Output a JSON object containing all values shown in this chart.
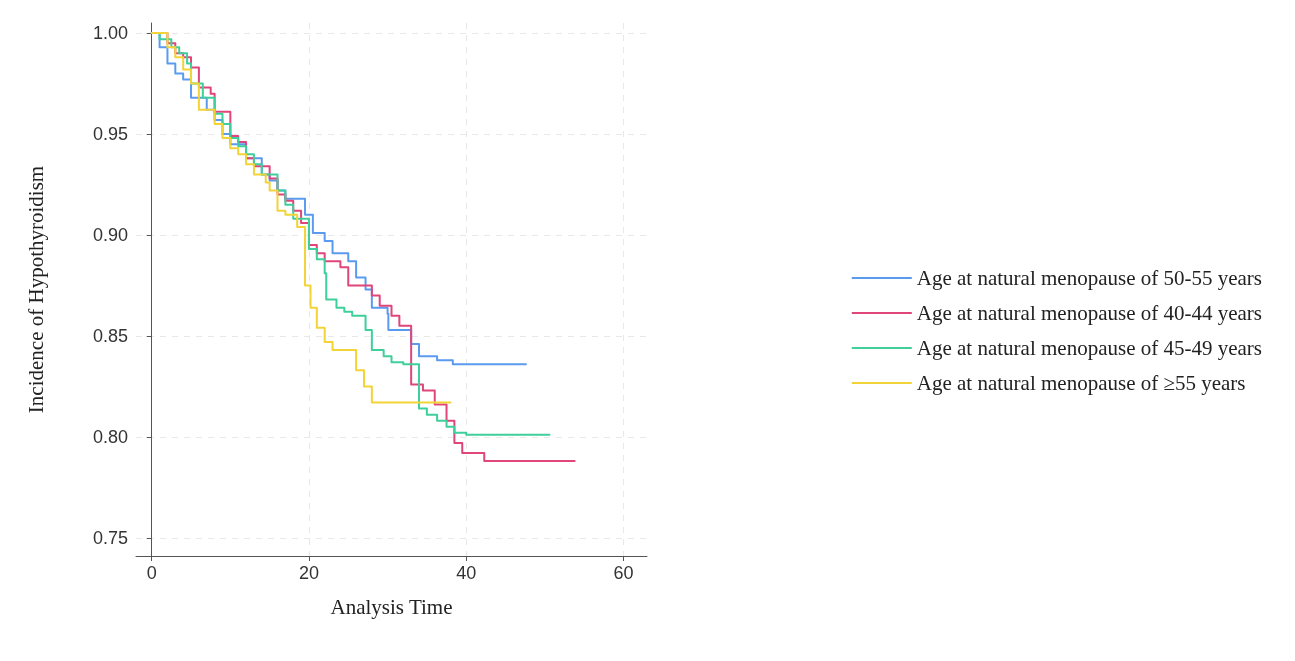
{
  "chart_data": {
    "type": "step",
    "xlabel": "Analysis Time",
    "ylabel": "Incidence of Hypothyroidism",
    "xlim": [
      -2,
      63
    ],
    "xticks": [
      0,
      20,
      40,
      60
    ],
    "ylim": [
      0.741,
      1.005
    ],
    "yticks": [
      {
        "value": 0.75,
        "label": "0.75"
      },
      {
        "value": 0.8,
        "label": "0.80"
      },
      {
        "value": 0.85,
        "label": "0.85"
      },
      {
        "value": 0.9,
        "label": "0.90"
      },
      {
        "value": 0.95,
        "label": "0.95"
      },
      {
        "value": 1,
        "label": "1.00"
      }
    ],
    "grid": true,
    "legend": "right",
    "marker": "none",
    "line_style": "solid",
    "series": [
      {
        "name": "Age at natural menopause of 50-55 years",
        "color": "#5b9bef",
        "x": [
          0,
          1,
          2,
          3,
          4,
          5,
          7,
          8,
          9,
          10,
          12,
          14,
          15,
          16,
          17,
          19.5,
          20.5,
          22,
          23,
          25,
          26,
          27.2,
          28,
          30,
          30.1,
          33,
          34,
          36.3,
          38.3,
          47.6
        ],
        "values": [
          1,
          0.993,
          0.985,
          0.98,
          0.977,
          0.968,
          0.962,
          0.957,
          0.95,
          0.945,
          0.938,
          0.93,
          0.927,
          0.922,
          0.918,
          0.91,
          0.901,
          0.897,
          0.891,
          0.887,
          0.879,
          0.873,
          0.864,
          0.861,
          0.853,
          0.846,
          0.84,
          0.838,
          0.836,
          0.836
        ]
      },
      {
        "name": "Age at natural menopause of 40-44 years",
        "color": "#e0457b",
        "x": [
          0,
          2,
          3,
          4,
          5,
          6,
          7.5,
          8,
          10,
          11,
          12,
          13,
          15,
          16,
          17,
          18,
          19,
          20,
          21,
          22,
          24,
          25,
          27,
          28,
          29,
          30.5,
          31.5,
          33,
          34.5,
          36,
          37.5,
          38.5,
          39.5,
          42.3,
          53.8
        ],
        "values": [
          1,
          0.995,
          0.99,
          0.988,
          0.983,
          0.973,
          0.97,
          0.961,
          0.949,
          0.946,
          0.938,
          0.934,
          0.928,
          0.92,
          0.917,
          0.912,
          0.906,
          0.895,
          0.891,
          0.887,
          0.884,
          0.875,
          0.875,
          0.87,
          0.865,
          0.86,
          0.855,
          0.826,
          0.823,
          0.816,
          0.808,
          0.797,
          0.792,
          0.788,
          0.788
        ]
      },
      {
        "name": "Age at natural menopause of 45-49 years",
        "color": "#3ecf9a",
        "x": [
          0,
          1,
          2.5,
          3.5,
          4.5,
          5,
          6.5,
          8,
          9,
          10,
          11,
          12,
          13,
          14,
          16,
          17,
          18,
          20,
          21,
          22,
          22.2,
          23.5,
          24.5,
          25.5,
          27.2,
          28,
          29.5,
          30.5,
          32,
          34,
          35,
          36.3,
          37.5,
          38.5,
          40,
          50.6
        ],
        "values": [
          1,
          0.997,
          0.993,
          0.99,
          0.985,
          0.975,
          0.968,
          0.96,
          0.955,
          0.948,
          0.944,
          0.94,
          0.935,
          0.93,
          0.922,
          0.915,
          0.908,
          0.893,
          0.888,
          0.881,
          0.868,
          0.864,
          0.862,
          0.86,
          0.853,
          0.843,
          0.84,
          0.837,
          0.836,
          0.814,
          0.811,
          0.808,
          0.805,
          0.802,
          0.801,
          0.801
        ]
      },
      {
        "name": "Age at natural menopause of ≥55 years",
        "color": "#f2d338",
        "x": [
          0,
          2,
          3,
          4,
          5,
          6,
          8,
          9,
          10,
          11,
          12,
          13,
          14.5,
          15,
          16,
          17,
          18.5,
          19.5,
          20.2,
          21,
          22,
          23,
          26,
          27,
          28,
          38
        ],
        "values": [
          1,
          0.993,
          0.988,
          0.982,
          0.975,
          0.962,
          0.955,
          0.948,
          0.943,
          0.94,
          0.935,
          0.93,
          0.926,
          0.922,
          0.912,
          0.91,
          0.904,
          0.875,
          0.864,
          0.854,
          0.847,
          0.843,
          0.833,
          0.825,
          0.817,
          0.817
        ]
      }
    ]
  }
}
